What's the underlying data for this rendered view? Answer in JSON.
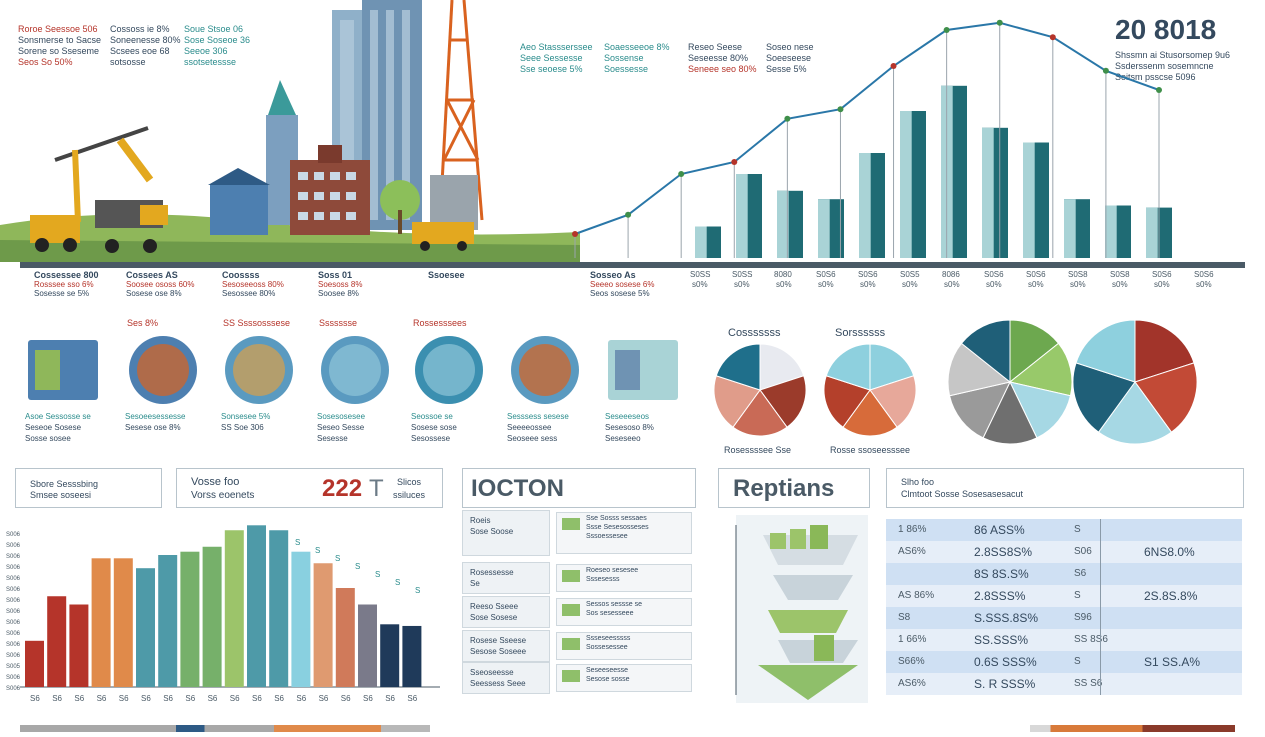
{
  "header": {
    "year_title": "20 8018",
    "year_sub": [
      "Shssmn ai Stusorsomep 9u6",
      "Ssderssenm sosemncne",
      "Soitsm psscse 5096"
    ]
  },
  "top_left_notes": [
    {
      "lines": [
        "Roroe Seessoe 506",
        "Sonsmerse to Sacse",
        "Sorene so Sseseme",
        "Seos So 50%"
      ]
    },
    {
      "lines": [
        "Cossoss ie 8%",
        "Soneenesse 80%",
        "Scsees eoe 68",
        "sotsosse"
      ]
    },
    {
      "lines": [
        "Soue Stsoe 06",
        "Sose Soseoe 36",
        "Seeoe 306",
        "ssotsetessse"
      ]
    }
  ],
  "top_mid_notes": [
    {
      "lines": [
        "Aeo Stassserssee",
        "Seee Sessesse",
        "Sse seoese 5%"
      ]
    },
    {
      "lines": [
        "Soaesseeoe 8%",
        "Sossense",
        "Soessesse"
      ]
    },
    {
      "lines": [
        "Reseo Seese",
        "Seseesse 80%",
        "Seneee seo 80%"
      ]
    },
    {
      "lines": [
        "Soseo nese",
        "Soeeseese",
        "Sesse 5%"
      ]
    }
  ],
  "axis_labels_left": [
    {
      "title": "Cossessee 800",
      "l1": "Rosssee sso 6%",
      "l2": "Sosesse se 5%"
    },
    {
      "title": "Cossees AS",
      "l1": "Soosee ososs 60%",
      "l2": "Sosese ose 8%"
    },
    {
      "title": "Coossss",
      "l1": "Sesoseeoss 80%",
      "l2": "Sesossee 80%"
    },
    {
      "title": "Soss 01",
      "l1": "Soesoss 8%",
      "l2": "Soosee 8%"
    },
    {
      "title": "Ssoesee",
      "l1": "",
      "l2": ""
    },
    {
      "title": "Sosseo As",
      "l1": "Seeeo sosese 6%",
      "l2": "Seos sosese 5%"
    }
  ],
  "top_bar_chart": {
    "values": [
      15,
      40,
      32,
      28,
      50,
      70,
      82,
      62,
      55,
      28,
      25,
      24
    ],
    "line": [
      10,
      18,
      35,
      40,
      58,
      62,
      80,
      95,
      98,
      92,
      78,
      70
    ],
    "tick_top": [
      "S0SS",
      "S0SS",
      "8080",
      "S0S6",
      "S0S6",
      "S0S5",
      "8086",
      "S0S6",
      "S0S6",
      "S0S8",
      "S0S8",
      "S0S6",
      "S0S6"
    ],
    "tick_bot": [
      "s0%",
      "s0%",
      "s0%",
      "s0%",
      "s0%",
      "s0%",
      "s0%",
      "s0%",
      "s0%",
      "s0%",
      "s0%",
      "s0%",
      "s0%"
    ]
  },
  "icons_row": [
    {
      "title": "",
      "l1": "Asoe Sessosse se",
      "l2": "Seseoe Sosese",
      "l3": "Sosse sosee"
    },
    {
      "title": "Ses 8%",
      "l1": "Sesoeesessesse",
      "l2": "Sesese ose 8%",
      "l3": ""
    },
    {
      "title": "SS Ssssosssese",
      "l1": "Sonsesee 5%",
      "l2": "SS Soe 306",
      "l3": ""
    },
    {
      "title": "Ssssssse",
      "l1": "Sosesosesee",
      "l2": "Seseo Sesse",
      "l3": "Sesesse"
    },
    {
      "title": "Rossesssees",
      "l1": "Seossoe se",
      "l2": "Sosese sose",
      "l3": "Sesossese"
    },
    {
      "title": "",
      "l1": "Sesssess sesese",
      "l2": "Seeeeossee",
      "l3": "Seoseee sess"
    },
    {
      "title": "",
      "l1": "Seseeeseos",
      "l2": "Sesesoso 8%",
      "l3": "Seseseeo"
    }
  ],
  "pies": [
    {
      "title": "Cosssssss",
      "caption": "Rosessssee Sse",
      "colors": [
        "#e8eaf0",
        "#9b3b2b",
        "#c96a56",
        "#e09c8a",
        "#1f6f8b"
      ]
    },
    {
      "title": "Sorssssss",
      "caption": "Rosse ssoseesssee",
      "colors": [
        "#8ed0de",
        "#e7a89a",
        "#d76b3a",
        "#b4402b",
        "#8ed0de"
      ]
    },
    {
      "title": "",
      "caption": "",
      "colors": [
        "#6da84f",
        "#98c96a",
        "#a6d8e4",
        "#6f6f6f",
        "#9a9a9a",
        "#c6c6c6",
        "#1f5f78"
      ]
    },
    {
      "title": "",
      "caption": "",
      "colors": [
        "#a2342a",
        "#c24a36",
        "#a6d8e4",
        "#1f5f78",
        "#8ed0de"
      ]
    }
  ],
  "boxes": {
    "box1": {
      "l1": "Sbore Sesssbing",
      "l2": "Smsee soseesi"
    },
    "box2": {
      "l1": "Vosse foo",
      "l2": "Vorss eoenets",
      "num": "222",
      "suffix": "T",
      "s1": "Slicos",
      "s2": "ssiluces"
    },
    "box3_title": "IOCTON",
    "box4_title": "Reptians",
    "box5": {
      "l1": "Slho foo",
      "l2": "Clmtoot Sosse Sosesasesacut"
    }
  },
  "bottom_bar_chart": {
    "values": [
      28,
      55,
      50,
      78,
      78,
      72,
      80,
      82,
      85,
      95,
      98,
      95,
      82,
      75,
      60,
      50,
      38,
      37
    ],
    "colors": [
      "#b5342a",
      "#b5342a",
      "#b5342a",
      "#e08a4a",
      "#e08a4a",
      "#4e9aa8",
      "#4e9aa8",
      "#76b06a",
      "#76b06a",
      "#9cc46a",
      "#4e9aa8",
      "#4e9aa8",
      "#89d0e0",
      "#df9a70",
      "#d07a5a",
      "#7a7a8a",
      "#1f3a5a",
      "#1f3a5a"
    ],
    "ylabels": [
      "S006",
      "S006",
      "S005",
      "S006",
      "S006",
      "S006",
      "S006",
      "S006",
      "S006",
      "S006",
      "S006",
      "S006",
      "S006",
      "S006",
      "S006"
    ],
    "xlabels": [
      "S6",
      "S6",
      "S6",
      "S6",
      "S6",
      "S6",
      "S6",
      "S6",
      "S6",
      "S6",
      "S6",
      "S6",
      "S6",
      "S6",
      "S6",
      "S6",
      "S6",
      "S6"
    ],
    "top_labels": [
      "S",
      "S",
      "S",
      "S",
      "S",
      "S",
      "S"
    ]
  },
  "mid_list": [
    {
      "label1": "Roeis",
      "label2": "Sose Soose",
      "r1": "Sse Sosss sessaes",
      "r2": "Ssse Sesesosseses",
      "r3": "Sssoessesee"
    },
    {
      "label1": "Rosessesse",
      "label2": "Se",
      "r1": "Roeseo sesesee",
      "r2": "Sssesesss",
      "r3": ""
    },
    {
      "label1": "Reeso Sseee",
      "label2": "Sose Sosese",
      "r1": "Sessos sessse se",
      "r2": "Sos sesesseee",
      "r3": ""
    },
    {
      "label1": "Rosese Sseese",
      "label2": "Sesose Soseee",
      "r1": "Ssseseesssss",
      "r2": "Sossesessee",
      "r3": ""
    },
    {
      "label1": "Sseoseesse",
      "label2": "Seessess Seee",
      "r1": "Seseeseesse",
      "r2": "Sesose sosse",
      "r3": ""
    }
  ],
  "table": {
    "rows": [
      {
        "c1": "1 86%",
        "c2": "86 ASS%",
        "c3": "S",
        "c4": ""
      },
      {
        "c1": "AS6%",
        "c2": "2.8SS8S%",
        "c3": "S06",
        "c4": "6NS8.0%"
      },
      {
        "c1": "",
        "c2": "8S 8S.S%",
        "c3": "S6",
        "c4": ""
      },
      {
        "c1": "AS 86%",
        "c2": "2.8SSS%",
        "c3": "S",
        "c4": "2S.8S.8%"
      },
      {
        "c1": "S8",
        "c2": "S.SSS.8S%",
        "c3": "S96",
        "c4": ""
      },
      {
        "c1": "1 66%",
        "c2": "SS.SSS%",
        "c3": "SS 8S6",
        "c4": ""
      },
      {
        "c1": "S66%",
        "c2": "0.6S SSS%",
        "c3": "S",
        "c4": "S1 SS.A%"
      },
      {
        "c1": "AS6%",
        "c2": "S. R SSS%",
        "c3": "SS S6",
        "c4": ""
      }
    ]
  },
  "colors": {
    "teal_dark": "#1f6b74",
    "teal_light": "#a9d3d6",
    "red": "#b5342a",
    "table_blue": "#cfe0f3"
  }
}
